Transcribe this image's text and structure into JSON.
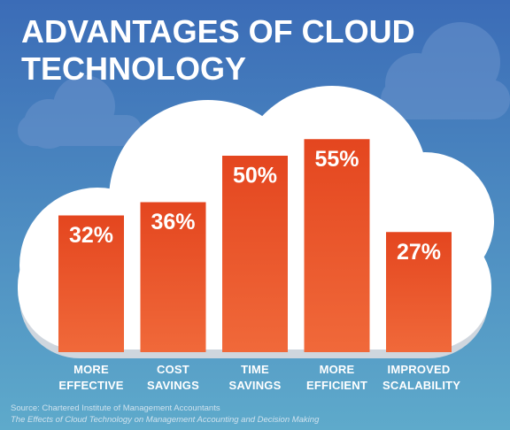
{
  "chart_data": {
    "type": "bar",
    "title": "ADVANTAGES OF CLOUD TECHNOLOGY",
    "categories": [
      "MORE EFFECTIVE",
      "COST SAVINGS",
      "TIME SAVINGS",
      "MORE EFFICIENT",
      "IMPROVED SCALABILITY"
    ],
    "values": [
      32,
      36,
      50,
      55,
      27
    ],
    "value_labels": [
      "32%",
      "36%",
      "50%",
      "55%",
      "27%"
    ],
    "color": "#e9552b",
    "source": "Source: Chartered Institute of Management Accountants",
    "source_title": "The Effects of Cloud Technology on Management Accounting and Decision Making"
  }
}
